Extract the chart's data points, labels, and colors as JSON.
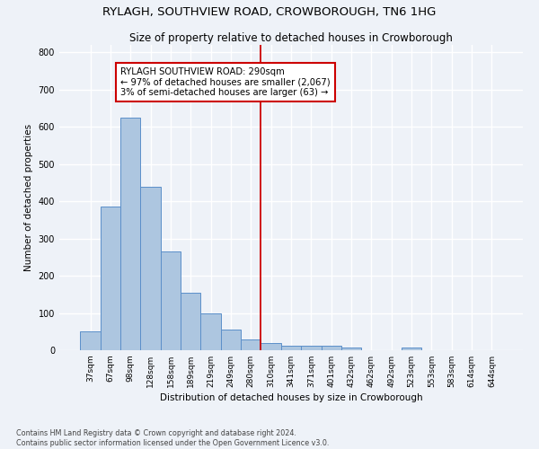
{
  "title": "RYLAGH, SOUTHVIEW ROAD, CROWBOROUGH, TN6 1HG",
  "subtitle": "Size of property relative to detached houses in Crowborough",
  "xlabel": "Distribution of detached houses by size in Crowborough",
  "ylabel": "Number of detached properties",
  "categories": [
    "37sqm",
    "67sqm",
    "98sqm",
    "128sqm",
    "158sqm",
    "189sqm",
    "219sqm",
    "249sqm",
    "280sqm",
    "310sqm",
    "341sqm",
    "371sqm",
    "401sqm",
    "432sqm",
    "462sqm",
    "492sqm",
    "523sqm",
    "553sqm",
    "583sqm",
    "614sqm",
    "644sqm"
  ],
  "values": [
    50,
    385,
    625,
    440,
    265,
    155,
    100,
    55,
    28,
    20,
    12,
    12,
    13,
    8,
    0,
    0,
    7,
    0,
    0,
    0,
    0
  ],
  "bar_color": "#adc6e0",
  "bar_edge_color": "#5b8fc9",
  "background_color": "#eef2f8",
  "grid_color": "#ffffff",
  "annotation_text_line1": "RYLAGH SOUTHVIEW ROAD: 290sqm",
  "annotation_text_line2": "← 97% of detached houses are smaller (2,067)",
  "annotation_text_line3": "3% of semi-detached houses are larger (63) →",
  "annotation_box_color": "#ffffff",
  "annotation_box_edge": "#cc0000",
  "vline_color": "#cc0000",
  "footer": "Contains HM Land Registry data © Crown copyright and database right 2024.\nContains public sector information licensed under the Open Government Licence v3.0.",
  "ylim": [
    0,
    820
  ],
  "yticks": [
    0,
    100,
    200,
    300,
    400,
    500,
    600,
    700,
    800
  ]
}
